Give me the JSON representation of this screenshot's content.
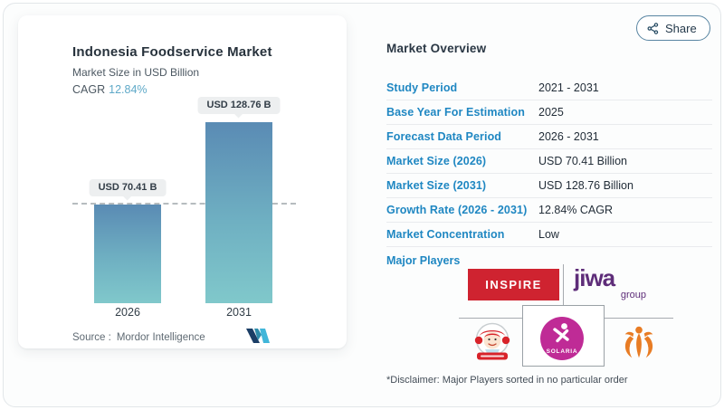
{
  "chart_card": {
    "title": "Indonesia Foodservice Market",
    "subtitle": "Market Size in USD Billion",
    "cagr_label": "CAGR",
    "cagr_value": "12.84%",
    "source_label": "Source :",
    "source_value": "Mordor Intelligence"
  },
  "chart_data": {
    "type": "bar",
    "title": "Indonesia Foodservice Market",
    "ylabel": "Market Size in USD Billion",
    "categories": [
      "2026",
      "2031"
    ],
    "values": [
      70.41,
      128.76
    ],
    "bar_labels": [
      "USD 70.41 B",
      "USD 128.76 B"
    ],
    "reference_line_at": 70.41,
    "ylim": [
      0,
      128.76
    ],
    "grid": false,
    "legend": false,
    "colors": {
      "bar_top": "#5a8bb4",
      "bar_bottom": "#80c8cb",
      "label_pill_bg": "#edeff0"
    }
  },
  "share": {
    "label": "Share"
  },
  "overview": {
    "heading": "Market Overview",
    "rows": [
      {
        "label": "Study Period",
        "value": "2021 - 2031"
      },
      {
        "label": "Base Year For Estimation",
        "value": "2025"
      },
      {
        "label": "Forecast Data Period",
        "value": "2026 - 2031"
      },
      {
        "label": "Market Size (2026)",
        "value": "USD 70.41 Billion"
      },
      {
        "label": "Market Size (2031)",
        "value": "USD 128.76 Billion"
      },
      {
        "label": "Growth Rate (2026 - 2031)",
        "value": "12.84% CAGR"
      },
      {
        "label": "Market Concentration",
        "value": "Low"
      }
    ],
    "major_players_label": "Major Players",
    "players": {
      "inspire_text": "INSPIRE",
      "jiwa_text": "jiwa",
      "jiwa_sub_text": "group",
      "solaria_text": "SOLARIA"
    },
    "disclaimer": "*Disclaimer: Major Players sorted in no particular order"
  },
  "colors": {
    "table_label_blue": "#1f87c2",
    "cagr_teal": "#5fa9c8",
    "inspire_red": "#cf2330",
    "jiwa_purple": "#5e2d79",
    "solaria_magenta": "#bf2b96",
    "wendys_red": "#d8232a",
    "emblem_orange": "#e87c24"
  }
}
